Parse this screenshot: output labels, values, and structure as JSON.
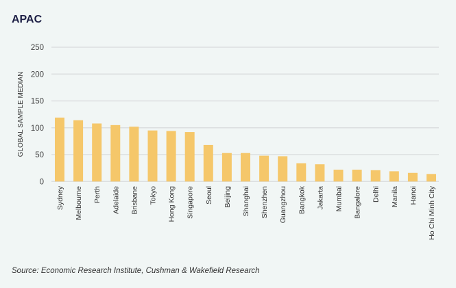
{
  "chart_data": {
    "type": "bar",
    "title": "APAC",
    "ylabel": "GLOBAL SAMPLE MEDIAN",
    "xlabel": "",
    "ylim": [
      0,
      250
    ],
    "yticks": [
      0,
      50,
      100,
      150,
      200,
      250
    ],
    "grid": true,
    "bar_color": "#f5c76a",
    "categories": [
      "Sydney",
      "Melbourne",
      "Perth",
      "Adelaide",
      "Brisbane",
      "Tokyo",
      "Hong Kong",
      "Singapore",
      "Seoul",
      "Beijing",
      "Shanghai",
      "Shenzhen",
      "Guangzhou",
      "Bangkok",
      "Jakarta",
      "Mumbai",
      "Bangalore",
      "Delhi",
      "Manila",
      "Hanoi",
      "Ho Chi Minh City"
    ],
    "values": [
      119,
      114,
      108,
      105,
      102,
      95,
      94,
      92,
      68,
      53,
      53,
      48,
      47,
      34,
      32,
      22,
      22,
      21,
      19,
      16,
      14
    ],
    "source": "Source: Economic Research Institute, Cushman & Wakefield Research"
  }
}
